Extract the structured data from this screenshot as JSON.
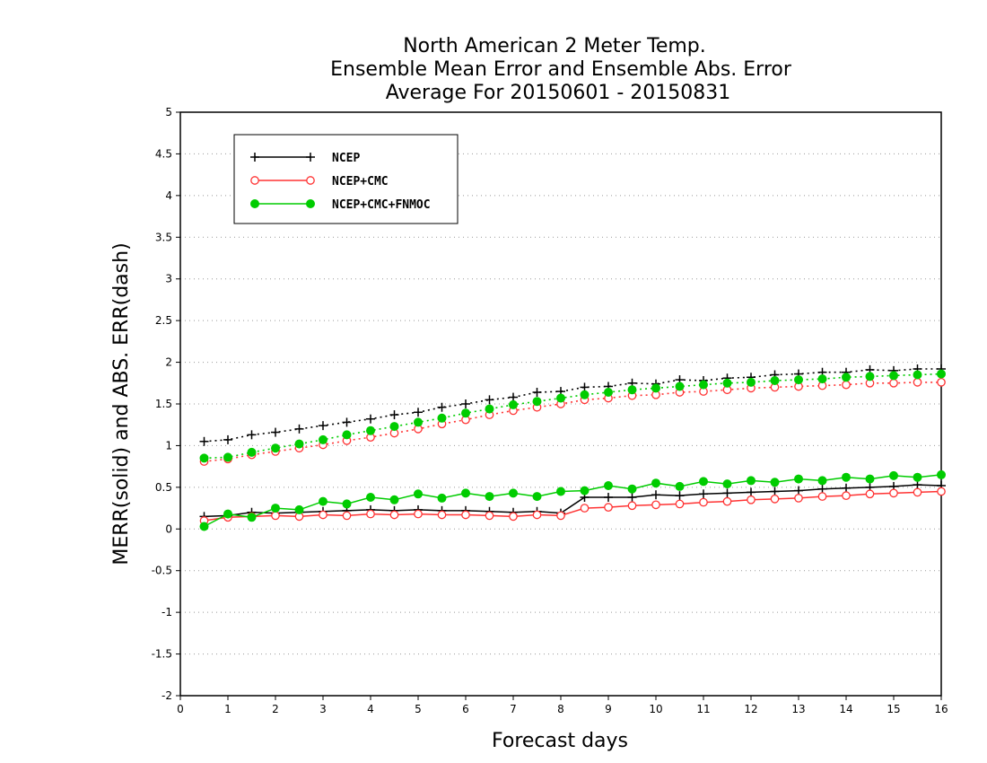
{
  "chart_data": {
    "type": "line",
    "title": [
      "North American 2 Meter Temp.",
      "Ensemble Mean Error and Ensemble Abs. Error",
      "Average For 20150601 - 20150831"
    ],
    "xlabel": "Forecast days",
    "ylabel": "MERR(solid) and ABS. ERR(dash)",
    "xlim": [
      0,
      16
    ],
    "ylim": [
      -2,
      5
    ],
    "x_ticks": [
      "0",
      "1",
      "2",
      "3",
      "4",
      "5",
      "6",
      "7",
      "8",
      "9",
      "10",
      "11",
      "12",
      "13",
      "14",
      "15",
      "16"
    ],
    "y_ticks": [
      "-2",
      "-1.5",
      "-1",
      "-0.5",
      "0",
      "0.5",
      "1",
      "1.5",
      "2",
      "2.5",
      "3",
      "3.5",
      "4",
      "4.5",
      "5"
    ],
    "grid": true,
    "legend_position": "top-left",
    "x": [
      0.5,
      1,
      1.5,
      2,
      2.5,
      3,
      3.5,
      4,
      4.5,
      5,
      5.5,
      6,
      6.5,
      7,
      7.5,
      8,
      8.5,
      9,
      9.5,
      10,
      10.5,
      11,
      11.5,
      12,
      12.5,
      13,
      13.5,
      14,
      14.5,
      15,
      15.5,
      16
    ],
    "series": [
      {
        "name": "NCEP",
        "color": "#000000",
        "marker": "plus",
        "merr": [
          0.15,
          0.16,
          0.2,
          0.19,
          0.2,
          0.21,
          0.22,
          0.23,
          0.22,
          0.23,
          0.22,
          0.22,
          0.21,
          0.2,
          0.21,
          0.19,
          0.38,
          0.38,
          0.38,
          0.41,
          0.4,
          0.42,
          0.43,
          0.44,
          0.45,
          0.46,
          0.48,
          0.49,
          0.5,
          0.51,
          0.53,
          0.52
        ],
        "abs_err": [
          1.05,
          1.07,
          1.13,
          1.16,
          1.2,
          1.24,
          1.28,
          1.32,
          1.37,
          1.4,
          1.46,
          1.5,
          1.55,
          1.58,
          1.64,
          1.65,
          1.7,
          1.71,
          1.75,
          1.74,
          1.79,
          1.78,
          1.81,
          1.82,
          1.85,
          1.86,
          1.88,
          1.88,
          1.91,
          1.9,
          1.92,
          1.92
        ]
      },
      {
        "name": "NCEP+CMC",
        "color": "#ff3333",
        "marker": "open-circle",
        "merr": [
          0.1,
          0.14,
          0.15,
          0.16,
          0.15,
          0.17,
          0.16,
          0.18,
          0.17,
          0.18,
          0.17,
          0.17,
          0.16,
          0.15,
          0.17,
          0.16,
          0.25,
          0.26,
          0.28,
          0.29,
          0.3,
          0.32,
          0.33,
          0.35,
          0.36,
          0.37,
          0.39,
          0.4,
          0.42,
          0.43,
          0.44,
          0.45
        ],
        "abs_err": [
          0.81,
          0.84,
          0.89,
          0.93,
          0.97,
          1.01,
          1.06,
          1.1,
          1.15,
          1.2,
          1.26,
          1.31,
          1.37,
          1.42,
          1.46,
          1.5,
          1.55,
          1.57,
          1.6,
          1.61,
          1.64,
          1.65,
          1.67,
          1.69,
          1.7,
          1.71,
          1.72,
          1.73,
          1.75,
          1.75,
          1.76,
          1.76
        ]
      },
      {
        "name": "NCEP+CMC+FNMOC",
        "color": "#00cc00",
        "marker": "filled-circle",
        "merr": [
          0.03,
          0.18,
          0.14,
          0.25,
          0.23,
          0.33,
          0.3,
          0.38,
          0.35,
          0.42,
          0.37,
          0.43,
          0.39,
          0.43,
          0.39,
          0.45,
          0.46,
          0.52,
          0.48,
          0.55,
          0.51,
          0.57,
          0.54,
          0.58,
          0.56,
          0.6,
          0.58,
          0.62,
          0.6,
          0.64,
          0.62,
          0.65
        ],
        "abs_err": [
          0.85,
          0.86,
          0.92,
          0.97,
          1.02,
          1.07,
          1.13,
          1.18,
          1.23,
          1.28,
          1.33,
          1.39,
          1.44,
          1.49,
          1.53,
          1.57,
          1.61,
          1.64,
          1.67,
          1.69,
          1.71,
          1.73,
          1.75,
          1.76,
          1.78,
          1.79,
          1.8,
          1.82,
          1.83,
          1.84,
          1.85,
          1.86
        ]
      }
    ]
  }
}
